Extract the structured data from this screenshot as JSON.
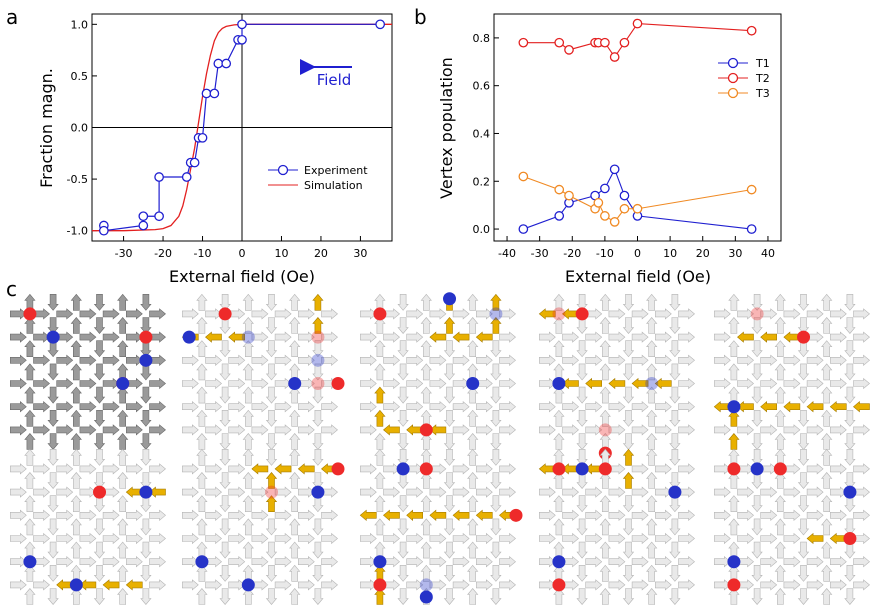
{
  "panel_labels": {
    "a": "a",
    "b": "b",
    "c": "c"
  },
  "colors": {
    "axis": "#000000",
    "blue": "#1f1fd0",
    "red": "#e32020",
    "orange": "#f08a24",
    "arrow_gold": "#e8b000",
    "arrow_gray": "#9a9a9a",
    "arrow_light": "#e9e9e9",
    "dot_red": "#ee2a2a",
    "dot_blue": "#2633c8"
  },
  "chart_data": [
    {
      "panel": "a",
      "type": "line",
      "xlabel": "External field (Oe)",
      "ylabel": "Fraction magn.",
      "xlim": [
        -38,
        38
      ],
      "ylim": [
        -1.1,
        1.1
      ],
      "xticks": [
        -30,
        -20,
        -10,
        0,
        10,
        20,
        30
      ],
      "xtick_labels": [
        "-30",
        "-20",
        "-10",
        "0",
        "10",
        "20",
        "30"
      ],
      "yticks": [
        -1.0,
        -0.5,
        0.0,
        0.5,
        1.0
      ],
      "ytick_labels": [
        "-1.0",
        "-0.5",
        "0.0",
        "0.5",
        "1.0"
      ],
      "annotation": "Field",
      "legend": [
        "Experiment",
        "Simulation"
      ],
      "series": [
        {
          "name": "Experiment",
          "style": "step-markers",
          "x": [
            -35,
            -35,
            -25,
            -25,
            -21,
            -21,
            -14,
            -13,
            -12,
            -11,
            -10,
            -9,
            -7,
            -6,
            -4,
            -1,
            0,
            0,
            35
          ],
          "y": [
            -0.95,
            -1.0,
            -0.95,
            -0.86,
            -0.86,
            -0.48,
            -0.48,
            -0.34,
            -0.34,
            -0.1,
            -0.1,
            0.33,
            0.33,
            0.62,
            0.62,
            0.85,
            0.85,
            1.0,
            1.0
          ]
        },
        {
          "name": "Simulation",
          "style": "curve",
          "x": [
            -38,
            -30,
            -22,
            -20,
            -18,
            -16,
            -15,
            -14,
            -13,
            -12,
            -11,
            -10,
            -9,
            -8,
            -7,
            -6,
            -5,
            -4,
            -2,
            0,
            38
          ],
          "y": [
            -1.0,
            -1.0,
            -0.99,
            -0.98,
            -0.95,
            -0.86,
            -0.76,
            -0.6,
            -0.4,
            -0.2,
            0.05,
            0.3,
            0.52,
            0.7,
            0.84,
            0.92,
            0.96,
            0.98,
            0.995,
            1.0,
            1.0
          ]
        }
      ]
    },
    {
      "panel": "b",
      "type": "line",
      "xlabel": "External field (Oe)",
      "ylabel": "Vertex population",
      "xlim": [
        -44,
        44
      ],
      "ylim": [
        -0.05,
        0.9
      ],
      "xticks": [
        -40,
        -30,
        -20,
        -10,
        0,
        10,
        20,
        30,
        40
      ],
      "xtick_labels": [
        "-40",
        "-30",
        "-20",
        "-10",
        "0",
        "10",
        "20",
        "30",
        "40"
      ],
      "yticks": [
        0.0,
        0.2,
        0.4,
        0.6,
        0.8
      ],
      "ytick_labels": [
        "0.0",
        "0.2",
        "0.4",
        "0.6",
        "0.8"
      ],
      "legend": [
        "T1",
        "T2",
        "T3"
      ],
      "series": [
        {
          "name": "T1",
          "color": "blue",
          "x": [
            -35,
            -24,
            -21,
            -13,
            -10,
            -7,
            -4,
            0,
            35
          ],
          "y": [
            0.0,
            0.055,
            0.11,
            0.14,
            0.17,
            0.25,
            0.14,
            0.055,
            0.0
          ]
        },
        {
          "name": "T2",
          "color": "red",
          "x": [
            -35,
            -24,
            -21,
            -13,
            -12,
            -10,
            -7,
            -4,
            0,
            35
          ],
          "y": [
            0.78,
            0.78,
            0.75,
            0.78,
            0.78,
            0.78,
            0.72,
            0.78,
            0.86,
            0.83
          ]
        },
        {
          "name": "T3",
          "color": "orange",
          "x": [
            -35,
            -24,
            -21,
            -13,
            -12,
            -10,
            -7,
            -4,
            0,
            35
          ],
          "y": [
            0.22,
            0.165,
            0.14,
            0.085,
            0.11,
            0.055,
            0.03,
            0.085,
            0.085,
            0.165
          ]
        }
      ]
    }
  ],
  "lattice_panels": [
    {
      "style": "full",
      "red": [
        [
          0,
          0
        ],
        [
          5,
          1
        ],
        [
          4,
          3
        ]
      ],
      "blue": [
        [
          1,
          1
        ],
        [
          5,
          2
        ],
        [
          4,
          3
        ]
      ],
      "gold": [],
      "extra": []
    },
    {
      "style": "light",
      "red": [
        [
          1,
          0
        ]
      ],
      "blue": [
        [
          4,
          3
        ]
      ],
      "gold": [
        [
          0,
          1,
          "h"
        ],
        [
          1,
          1,
          "h"
        ],
        [
          5,
          0,
          "v"
        ]
      ],
      "extra": [
        {
          "c": "blue",
          "p": [
            0,
            1
          ]
        }
      ],
      "faded": [
        [
          2,
          1,
          "b"
        ],
        [
          5,
          1,
          "r"
        ],
        [
          5,
          2,
          "b"
        ],
        [
          5,
          3,
          "r"
        ]
      ],
      "extraDot": [
        {
          "c": "red",
          "p": [
            6,
            3
          ]
        }
      ]
    },
    {
      "style": "light",
      "red": [
        [
          0,
          0
        ]
      ],
      "blue": [
        [
          4,
          3
        ]
      ],
      "gold": [
        [
          3,
          0,
          "v"
        ],
        [
          3,
          1,
          "h"
        ],
        [
          4,
          1,
          "h"
        ],
        [
          5,
          0,
          "v"
        ],
        [
          0,
          4,
          "v"
        ],
        [
          1,
          5,
          "h"
        ],
        [
          2,
          5,
          "h"
        ]
      ],
      "faded": [
        [
          5,
          0,
          "b"
        ]
      ],
      "extraDot": [
        {
          "c": "blue",
          "p": [
            3,
            -1
          ]
        },
        {
          "c": "red",
          "p": [
            2,
            5
          ]
        }
      ]
    },
    {
      "style": "light",
      "red": [
        [
          1,
          0
        ]
      ],
      "blue": [],
      "gold": [
        [
          0,
          0,
          "h"
        ],
        [
          1,
          3,
          "h"
        ],
        [
          2,
          3,
          "h"
        ],
        [
          3,
          3,
          "h"
        ],
        [
          4,
          3,
          "h"
        ]
      ],
      "faded": [
        [
          0,
          0,
          "r"
        ],
        [
          4,
          3,
          "b"
        ],
        [
          2,
          5,
          "r"
        ]
      ],
      "extraDot": [
        {
          "c": "blue",
          "p": [
            0,
            3
          ]
        },
        {
          "c": "red",
          "p": [
            2,
            6
          ]
        }
      ]
    },
    {
      "style": "light",
      "red": [
        [
          3,
          1
        ]
      ],
      "blue": [
        [
          0,
          4
        ]
      ],
      "gold": [
        [
          1,
          1,
          "h"
        ],
        [
          2,
          1,
          "h"
        ],
        [
          0,
          4,
          "h"
        ],
        [
          1,
          4,
          "h"
        ],
        [
          2,
          4,
          "h"
        ],
        [
          3,
          4,
          "h"
        ],
        [
          4,
          4,
          "h"
        ],
        [
          5,
          4,
          "h"
        ],
        [
          0,
          5,
          "v"
        ]
      ],
      "faded": [
        [
          1,
          0,
          "r"
        ]
      ],
      "extraDot": []
    },
    {
      "style": "light",
      "red": [
        [
          3,
          1
        ]
      ],
      "blue": [
        [
          5,
          1
        ],
        [
          0,
          4
        ],
        [
          2,
          5
        ]
      ],
      "gold": [
        [
          5,
          1,
          "h"
        ],
        [
          2,
          5,
          "h"
        ],
        [
          3,
          5,
          "h"
        ],
        [
          4,
          5,
          "h"
        ]
      ],
      "faded": [],
      "extraDot": []
    },
    {
      "style": "light",
      "red": [],
      "blue": [
        [
          5,
          1
        ],
        [
          0,
          4
        ],
        [
          2,
          5
        ]
      ],
      "gold": [
        [
          3,
          0,
          "h"
        ],
        [
          4,
          0,
          "h"
        ],
        [
          5,
          0,
          "h"
        ],
        [
          3,
          1,
          "v"
        ]
      ],
      "faded": [
        [
          3,
          1,
          "r"
        ]
      ],
      "extraDot": [
        {
          "c": "red",
          "p": [
            6,
            0
          ]
        }
      ]
    },
    {
      "style": "light",
      "red": [
        [
          2,
          0
        ]
      ],
      "blue": [
        [
          1,
          0
        ],
        [
          0,
          4
        ]
      ],
      "gold": [
        [
          0,
          2,
          "h"
        ],
        [
          1,
          2,
          "h"
        ],
        [
          2,
          2,
          "h"
        ],
        [
          3,
          2,
          "h"
        ],
        [
          4,
          2,
          "h"
        ],
        [
          5,
          2,
          "h"
        ],
        [
          0,
          5,
          "v"
        ]
      ],
      "faded": [
        [
          2,
          5,
          "b"
        ]
      ],
      "extraDot": [
        {
          "c": "red",
          "p": [
            6,
            2
          ]
        },
        {
          "c": "red",
          "p": [
            0,
            5
          ]
        },
        {
          "c": "blue",
          "p": [
            2,
            6
          ]
        }
      ]
    },
    {
      "style": "light",
      "red": [
        [
          0,
          0
        ],
        [
          2,
          0
        ]
      ],
      "blue": [
        [
          1,
          0
        ],
        [
          5,
          1
        ],
        [
          0,
          4
        ]
      ],
      "gold": [
        [
          0,
          0,
          "h"
        ],
        [
          1,
          0,
          "h"
        ],
        [
          3,
          0,
          "v"
        ]
      ],
      "faded": [],
      "extraDot": [
        {
          "c": "red",
          "p": [
            0,
            5
          ]
        }
      ]
    },
    {
      "style": "light",
      "red": [
        [
          0,
          0
        ],
        [
          2,
          0
        ],
        [
          5,
          3
        ]
      ],
      "blue": [
        [
          1,
          0
        ],
        [
          5,
          1
        ],
        [
          0,
          4
        ]
      ],
      "gold": [
        [
          4,
          3,
          "h"
        ]
      ],
      "faded": [],
      "extraDot": [
        {
          "c": "red",
          "p": [
            0,
            5
          ]
        }
      ]
    }
  ]
}
